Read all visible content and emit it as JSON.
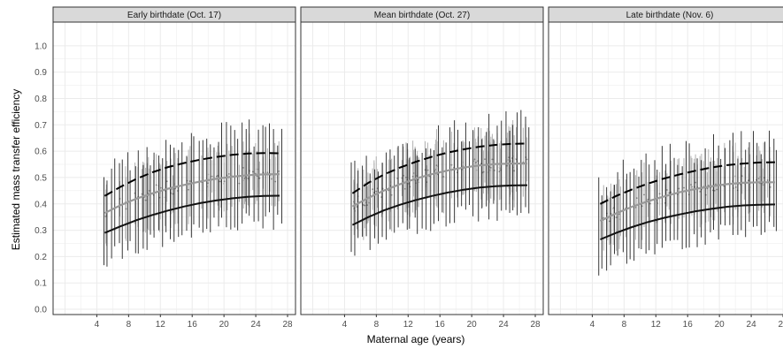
{
  "chart_data": {
    "type": "line",
    "xlabel": "Maternal age (years)",
    "ylabel": "Estimated mass transfer efficiency",
    "xticks": [
      4,
      8,
      12,
      16,
      20,
      24,
      28
    ],
    "yticks": [
      0.0,
      0.1,
      0.2,
      0.3,
      0.4,
      0.5,
      0.6,
      0.7,
      0.8,
      0.9,
      1.0
    ],
    "xlim": [
      -1.5,
      29
    ],
    "ylim": [
      -0.02,
      1.09
    ],
    "grid": true,
    "colors": {
      "dashed_line": "#000000",
      "solid_line": "#111111",
      "gray_line": "#999999",
      "dark_bars": "#222222",
      "gray_bars": "#b8b8b8",
      "points": "#7a7a7a",
      "strip_fill": "#d9d9d9",
      "grid": "#ebebeb"
    },
    "panels": [
      {
        "title": "Early birthdate (Oct. 17)",
        "series": [
          {
            "style": "dashed",
            "x": [
              5,
              7,
              9,
              11,
              13,
              15,
              17,
              19,
              21,
              23,
              25,
              27
            ],
            "y": [
              0.43,
              0.465,
              0.495,
              0.52,
              0.54,
              0.555,
              0.568,
              0.578,
              0.586,
              0.591,
              0.593,
              0.592
            ]
          },
          {
            "style": "gray",
            "x": [
              5,
              7,
              9,
              11,
              13,
              15,
              17,
              19,
              21,
              23,
              25,
              27
            ],
            "y": [
              0.365,
              0.395,
              0.42,
              0.44,
              0.458,
              0.472,
              0.485,
              0.495,
              0.503,
              0.509,
              0.512,
              0.513
            ]
          },
          {
            "style": "solid",
            "x": [
              5,
              7,
              9,
              11,
              13,
              15,
              17,
              19,
              21,
              23,
              25,
              27
            ],
            "y": [
              0.29,
              0.315,
              0.338,
              0.358,
              0.375,
              0.39,
              0.403,
              0.413,
              0.421,
              0.427,
              0.43,
              0.431
            ]
          }
        ]
      },
      {
        "title": "Mean birthdate (Oct. 27)",
        "series": [
          {
            "style": "dashed",
            "x": [
              5,
              7,
              9,
              11,
              13,
              15,
              17,
              19,
              21,
              23,
              25,
              27
            ],
            "y": [
              0.44,
              0.48,
              0.512,
              0.538,
              0.56,
              0.579,
              0.595,
              0.607,
              0.617,
              0.624,
              0.628,
              0.629
            ]
          },
          {
            "style": "gray",
            "x": [
              5,
              7,
              9,
              11,
              13,
              15,
              17,
              19,
              21,
              23,
              25,
              27
            ],
            "y": [
              0.39,
              0.423,
              0.451,
              0.475,
              0.496,
              0.513,
              0.527,
              0.538,
              0.546,
              0.551,
              0.553,
              0.553
            ]
          },
          {
            "style": "solid",
            "x": [
              5,
              7,
              9,
              11,
              13,
              15,
              17,
              19,
              21,
              23,
              25,
              27
            ],
            "y": [
              0.32,
              0.35,
              0.376,
              0.397,
              0.415,
              0.43,
              0.443,
              0.454,
              0.462,
              0.467,
              0.47,
              0.471
            ]
          }
        ]
      },
      {
        "title": "Late birthdate (Nov. 6)",
        "series": [
          {
            "style": "dashed",
            "x": [
              5,
              7,
              9,
              11,
              13,
              15,
              17,
              19,
              21,
              23,
              25,
              27
            ],
            "y": [
              0.4,
              0.43,
              0.455,
              0.477,
              0.496,
              0.512,
              0.526,
              0.538,
              0.547,
              0.553,
              0.557,
              0.558
            ]
          },
          {
            "style": "gray",
            "x": [
              5,
              7,
              9,
              11,
              13,
              15,
              17,
              19,
              21,
              23,
              25,
              27
            ],
            "y": [
              0.335,
              0.364,
              0.389,
              0.41,
              0.428,
              0.444,
              0.457,
              0.467,
              0.475,
              0.48,
              0.482,
              0.482
            ]
          },
          {
            "style": "solid",
            "x": [
              5,
              7,
              9,
              11,
              13,
              15,
              17,
              19,
              21,
              23,
              25,
              27
            ],
            "y": [
              0.265,
              0.29,
              0.312,
              0.331,
              0.347,
              0.36,
              0.372,
              0.381,
              0.389,
              0.394,
              0.397,
              0.398
            ]
          }
        ]
      }
    ]
  }
}
